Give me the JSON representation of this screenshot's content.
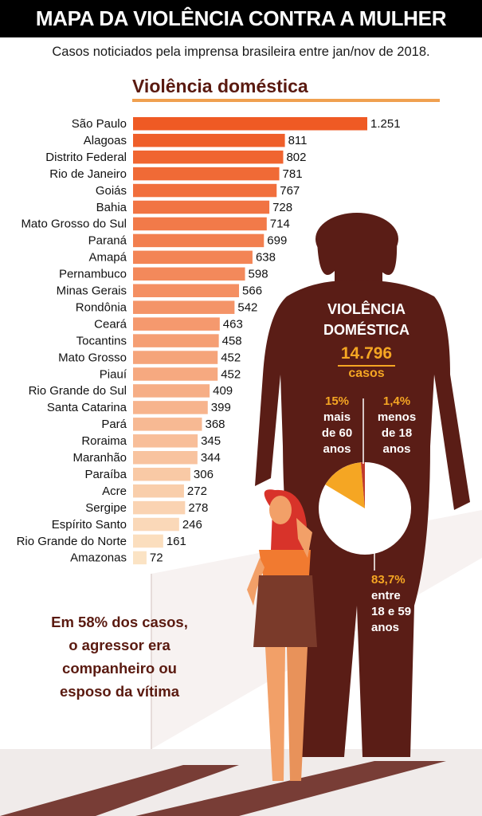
{
  "header": {
    "title": "MAPA DA VIOLÊNCIA CONTRA A MULHER"
  },
  "subtitle": "Casos noticiados pela imprensa brasileira entre jan/nov de 2018.",
  "colors": {
    "bar_dark": "#ef5a24",
    "bar_light": "#fbe3c4",
    "silhouette": "#5a1d16",
    "accent": "#f5a623",
    "pie_white": "#ffffff",
    "pie_red": "#c0392b"
  },
  "chart_data": [
    {
      "type": "bar",
      "orientation": "horizontal",
      "title": "Violência doméstica",
      "categories": [
        "São Paulo",
        "Alagoas",
        "Distrito Federal",
        "Rio de Janeiro",
        "Goiás",
        "Bahia",
        "Mato Grosso do Sul",
        "Paraná",
        "Amapá",
        "Pernambuco",
        "Minas Gerais",
        "Rondônia",
        "Ceará",
        "Tocantins",
        "Mato Grosso",
        "Piauí",
        "Rio Grande do Sul",
        "Santa Catarina",
        "Pará",
        "Roraima",
        "Maranhão",
        "Paraíba",
        "Acre",
        "Sergipe",
        "Espírito Santo",
        "Rio Grande do Norte",
        "Amazonas"
      ],
      "values": [
        1251,
        811,
        802,
        781,
        767,
        728,
        714,
        699,
        638,
        598,
        566,
        542,
        463,
        458,
        452,
        452,
        409,
        399,
        368,
        345,
        344,
        306,
        272,
        278,
        246,
        161,
        72
      ],
      "value_labels": [
        "1.251",
        "811",
        "802",
        "781",
        "767",
        "728",
        "714",
        "699",
        "638",
        "598",
        "566",
        "542",
        "463",
        "458",
        "452",
        "452",
        "409",
        "399",
        "368",
        "345",
        "344",
        "306",
        "272",
        "278",
        "246",
        "161",
        "72"
      ]
    },
    {
      "type": "pie",
      "title": "VIOLÊNCIA DOMÉSTICA",
      "total": "14.796",
      "total_unit": "casos",
      "slices": [
        {
          "pct": 83.7,
          "pct_label": "83,7%",
          "text": [
            "entre",
            "18 e 59",
            "anos"
          ]
        },
        {
          "pct": 15.0,
          "pct_label": "15%",
          "text": [
            "mais",
            "de 60",
            "anos"
          ]
        },
        {
          "pct": 1.4,
          "pct_label": "1,4%",
          "text": [
            "menos",
            "de 18",
            "anos"
          ]
        }
      ]
    }
  ],
  "footnote": [
    "Em 58% dos casos,",
    "o agressor era",
    "companheiro ou",
    "esposo da vítima"
  ]
}
